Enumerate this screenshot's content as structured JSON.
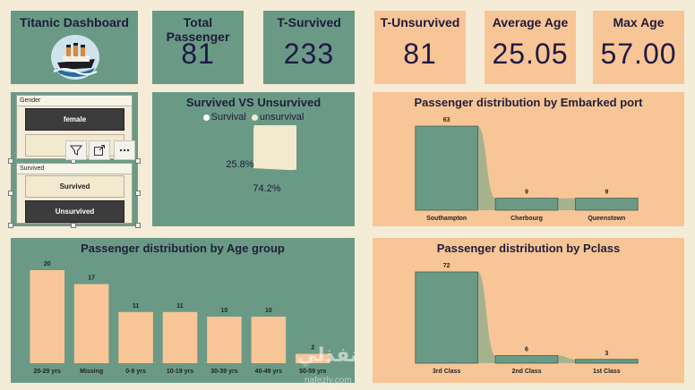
{
  "kpis": {
    "dashboard_title": "Titanic Dashboard",
    "total_passenger": {
      "label": "Total Passenger",
      "value": "81"
    },
    "t_survived": {
      "label": "T-Survived",
      "value": "233"
    },
    "t_unsurvived": {
      "label": "T-Unsurvived",
      "value": "81"
    },
    "average_age": {
      "label": "Average Age",
      "value": "25.05"
    },
    "max_age": {
      "label": "Max Age",
      "value": "57.00"
    }
  },
  "slicers": {
    "gender": {
      "title": "Gender",
      "options": [
        "female",
        ""
      ]
    },
    "survived": {
      "title": "Survived",
      "options": [
        "Survived",
        "Unsurvived"
      ]
    }
  },
  "colors": {
    "background": "#f4ecd6",
    "green": "#6a9a85",
    "peach": "#f8c597",
    "bar_green": "#6a9a85",
    "pie_unsurvival": "#f2e9cf",
    "pie_survival": "#f8c597",
    "slicer_selected": "#3c3c3c"
  },
  "icons": [
    "ship-logo-icon",
    "filter-icon",
    "focus-mode-icon",
    "more-options-icon"
  ],
  "watermark": {
    "text": "نفذلي",
    "sub": "nafezly.com"
  },
  "chart_data": [
    {
      "type": "pie",
      "title": "Survived VS Unsurvived",
      "legend": [
        "Survival",
        "unsurvival"
      ],
      "legend_position": "top",
      "slices": [
        {
          "name": "Survival",
          "value": 25.8,
          "label": "25.8%"
        },
        {
          "name": "unsurvival",
          "value": 74.2,
          "label": "74.2%"
        }
      ]
    },
    {
      "type": "bar",
      "title": "Passenger distribution by Embarked port",
      "categories": [
        "Southampton",
        "Cherbourg",
        "Queenstown"
      ],
      "values": [
        63,
        9,
        9
      ],
      "ylim": [
        0,
        63
      ]
    },
    {
      "type": "bar",
      "title": "Passenger distribution by Age group",
      "categories": [
        "20-29 yrs",
        "Missing",
        "0-9 yrs",
        "10-19 yrs",
        "30-39 yrs",
        "40-49 yrs",
        "50-59 yrs"
      ],
      "values": [
        20,
        17,
        11,
        11,
        10,
        10,
        2
      ],
      "ylim": [
        0,
        20
      ]
    },
    {
      "type": "bar",
      "title": "Passenger distribution by Pclass",
      "categories": [
        "3rd Class",
        "2nd Class",
        "1st Class"
      ],
      "values": [
        72,
        6,
        3
      ],
      "ylim": [
        0,
        72
      ]
    }
  ]
}
